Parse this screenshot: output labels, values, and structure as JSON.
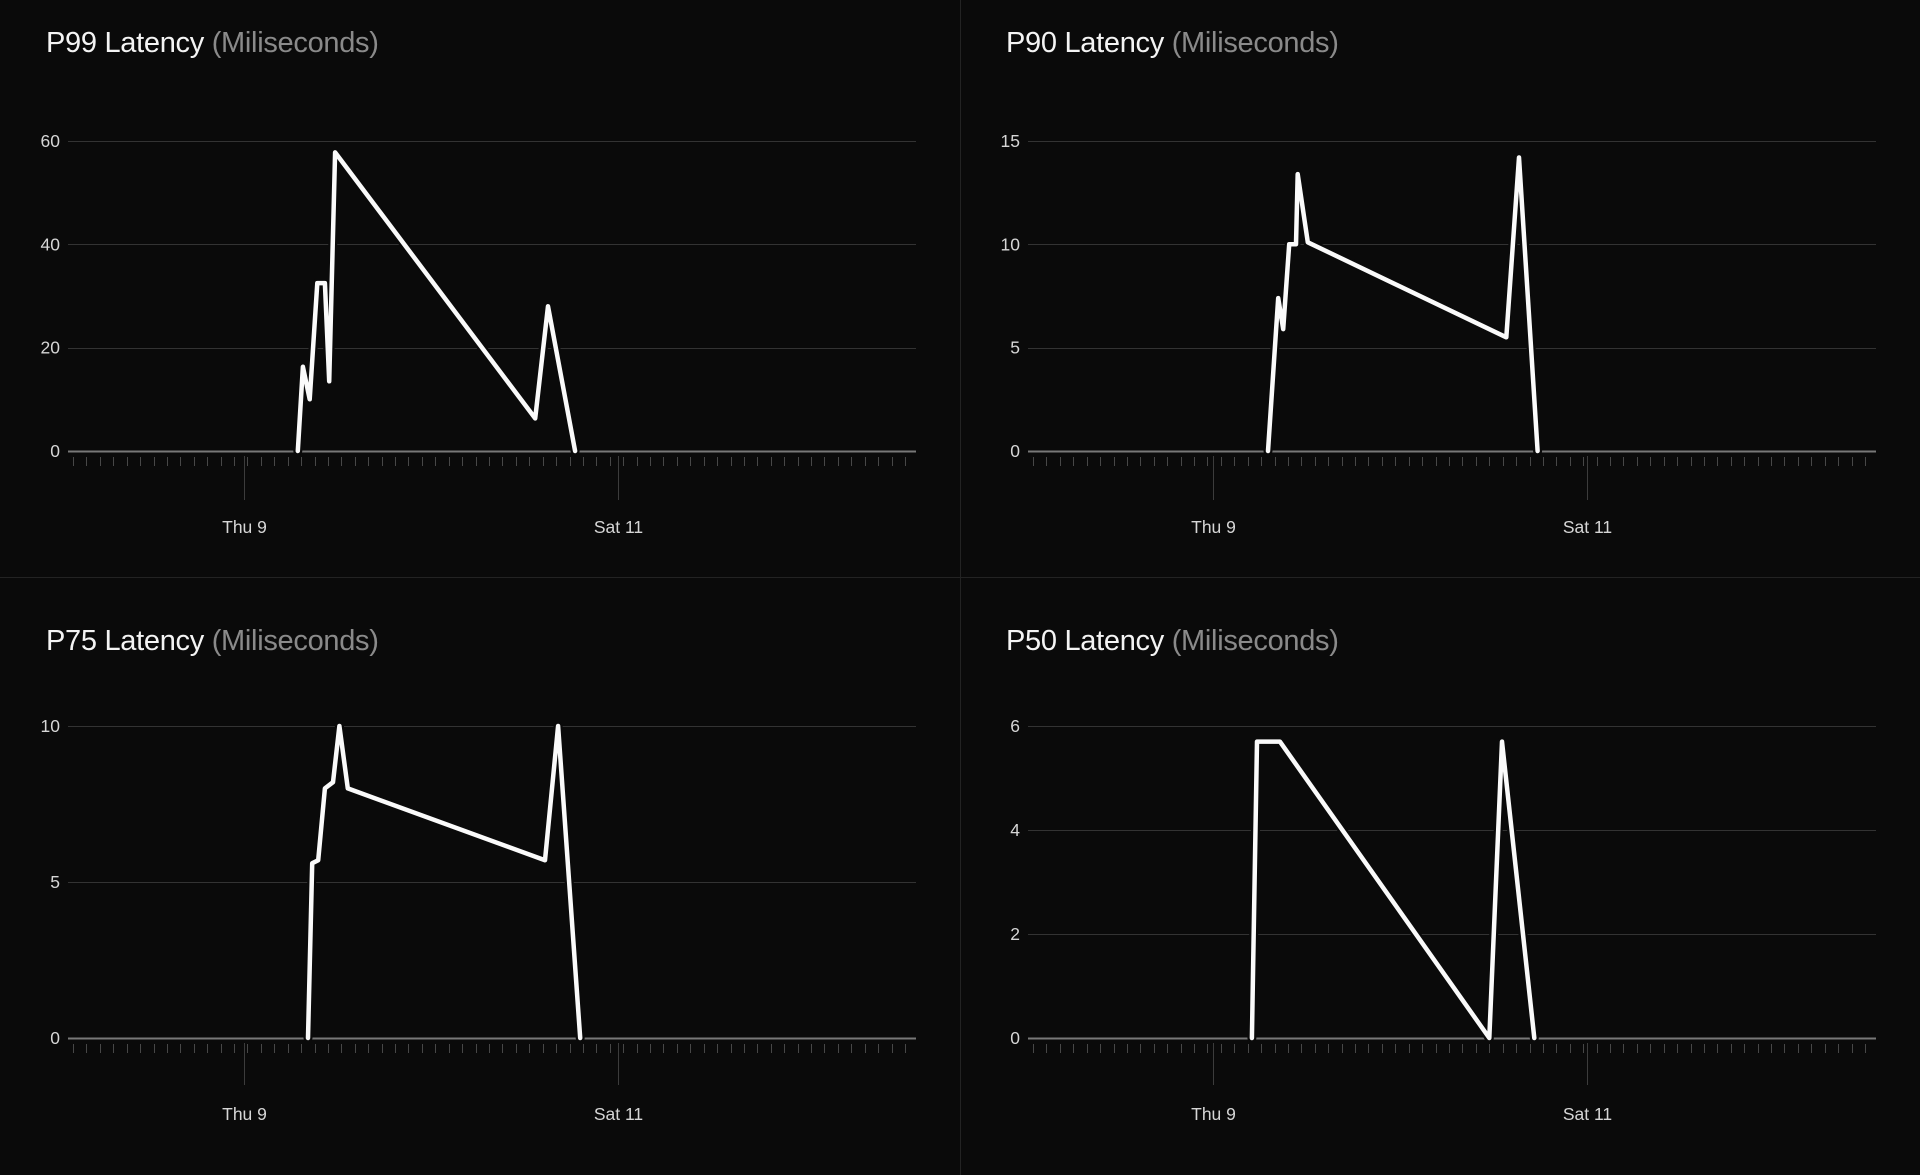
{
  "page": {
    "background": "#0a0a0a",
    "layout": "2x2 latency chart grid"
  },
  "colors": {
    "background": "#0a0a0a",
    "title": "#f4f4f4",
    "subtitle": "#8a8a8a",
    "tick_label": "#d6d6d6",
    "gridline": "#333333",
    "zero_axis": "#787878",
    "minor_tick": "#474747",
    "major_tick": "#3c3c3c",
    "series_line": "#fafafa",
    "divider": "#232323"
  },
  "chart_data": [
    {
      "id": "p99",
      "type": "line",
      "title": "P99 Latency",
      "subtitle": "(Miliseconds)",
      "ylabel": "Miliseconds",
      "y_ticks": [
        0,
        20,
        40,
        60
      ],
      "ylim": [
        0,
        60
      ],
      "grid": "horizontal-only",
      "legend": "none",
      "x_tick_labels": [
        {
          "label": "Thu 9",
          "f": 0.2075
        },
        {
          "label": "Sat 11",
          "f": 0.6486
        }
      ],
      "series": [
        {
          "name": "P99 latency (ms)",
          "points": [
            [
              0.271,
              0
            ],
            [
              0.277,
              16.3
            ],
            [
              0.285,
              10
            ],
            [
              0.294,
              32.5
            ],
            [
              0.303,
              32.5
            ],
            [
              0.308,
              13.5
            ],
            [
              0.315,
              57.8
            ],
            [
              0.551,
              6.3
            ],
            [
              0.566,
              28
            ],
            [
              0.598,
              0
            ]
          ]
        }
      ]
    },
    {
      "id": "p90",
      "type": "line",
      "title": "P90 Latency",
      "subtitle": "(Miliseconds)",
      "ylabel": "Miliseconds",
      "y_ticks": [
        0,
        5,
        10,
        15
      ],
      "ylim": [
        0,
        15
      ],
      "grid": "horizontal-only",
      "legend": "none",
      "x_tick_labels": [
        {
          "label": "Thu 9",
          "f": 0.218
        },
        {
          "label": "Sat 11",
          "f": 0.659
        }
      ],
      "series": [
        {
          "name": "P90 latency (ms)",
          "points": [
            [
              0.283,
              0
            ],
            [
              0.295,
              7.4
            ],
            [
              0.301,
              5.9
            ],
            [
              0.308,
              10
            ],
            [
              0.316,
              10
            ],
            [
              0.318,
              13.4
            ],
            [
              0.33,
              10.1
            ],
            [
              0.564,
              5.5
            ],
            [
              0.579,
              14.2
            ],
            [
              0.601,
              0
            ]
          ]
        }
      ]
    },
    {
      "id": "p75",
      "type": "line",
      "title": "P75 Latency",
      "subtitle": "(Miliseconds)",
      "ylabel": "Miliseconds",
      "y_ticks": [
        0,
        5,
        10
      ],
      "ylim": [
        0,
        10
      ],
      "grid": "horizontal-only",
      "legend": "none",
      "x_tick_labels": [
        {
          "label": "Thu 9",
          "f": 0.2075
        },
        {
          "label": "Sat 11",
          "f": 0.6486
        }
      ],
      "series": [
        {
          "name": "P75 latency (ms)",
          "points": [
            [
              0.283,
              0
            ],
            [
              0.288,
              5.6
            ],
            [
              0.295,
              5.7
            ],
            [
              0.303,
              8.0
            ],
            [
              0.3125,
              8.2
            ],
            [
              0.32,
              10
            ],
            [
              0.33,
              8.0
            ],
            [
              0.5625,
              5.7
            ],
            [
              0.578,
              10
            ],
            [
              0.604,
              0
            ]
          ]
        }
      ]
    },
    {
      "id": "p50",
      "type": "line",
      "title": "P50 Latency",
      "subtitle": "(Miliseconds)",
      "ylabel": "Miliseconds",
      "y_ticks": [
        0,
        2,
        4,
        6
      ],
      "ylim": [
        0,
        6
      ],
      "grid": "horizontal-only",
      "legend": "none",
      "x_tick_labels": [
        {
          "label": "Thu 9",
          "f": 0.218
        },
        {
          "label": "Sat 11",
          "f": 0.659
        }
      ],
      "series": [
        {
          "name": "P50 latency (ms)",
          "points": [
            [
              0.264,
              0
            ],
            [
              0.27,
              5.7
            ],
            [
              0.297,
              5.7
            ],
            [
              0.544,
              0
            ],
            [
              0.559,
              5.7
            ],
            [
              0.597,
              0
            ]
          ]
        }
      ]
    }
  ]
}
